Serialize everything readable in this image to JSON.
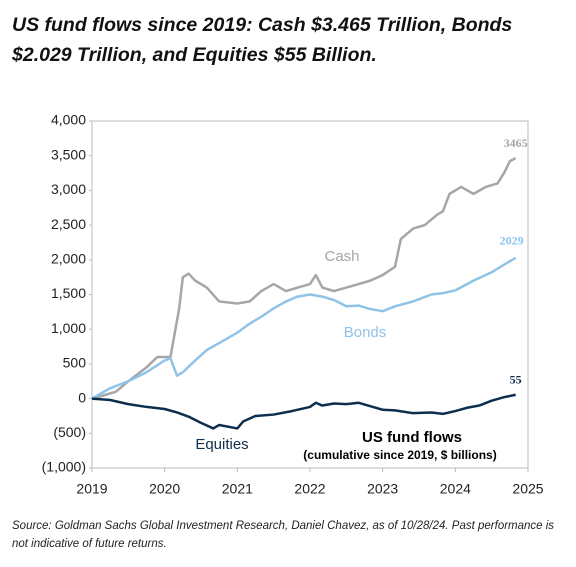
{
  "chart_data": {
    "type": "line",
    "title": "US fund flows since 2019: Cash $3.465 Trillion, Bonds $2.029 Trillion, and Equities $55 Billion.",
    "annotation": "US fund flows",
    "annotation_sub": "(cumulative since 2019, $ billions)",
    "source": "Source: Goldman Sachs Global Investment Research, Daniel Chavez,  as of 10/28/24. Past performance is not indicative of future returns.",
    "xlim": [
      2019,
      2025
    ],
    "xticks": [
      2019,
      2020,
      2021,
      2022,
      2023,
      2024,
      2025
    ],
    "ylim": [
      -1000,
      4000
    ],
    "yticks": [
      {
        "value": -1000,
        "label": "(1,000)"
      },
      {
        "value": -500,
        "label": "(500)"
      },
      0,
      500,
      {
        "value": 1000,
        "label": "1,000"
      },
      {
        "value": 1500,
        "label": "1,500"
      },
      {
        "value": 2000,
        "label": "2,000"
      },
      {
        "value": 2500,
        "label": "2,500"
      },
      {
        "value": 3000,
        "label": "3,000"
      },
      {
        "value": 3500,
        "label": "3,500"
      },
      {
        "value": 4000,
        "label": "4,000"
      }
    ],
    "series": [
      {
        "name": "Cash",
        "color": "#a6a6a6",
        "x": [
          2019.0,
          2019.17,
          2019.33,
          2019.5,
          2019.75,
          2019.9,
          2020.0,
          2020.08,
          2020.2,
          2020.25,
          2020.33,
          2020.42,
          2020.58,
          2020.75,
          2021.0,
          2021.17,
          2021.33,
          2021.5,
          2021.67,
          2021.83,
          2022.0,
          2022.08,
          2022.17,
          2022.33,
          2022.5,
          2022.67,
          2022.83,
          2023.0,
          2023.17,
          2023.25,
          2023.42,
          2023.58,
          2023.75,
          2023.83,
          2023.92,
          2024.08,
          2024.25,
          2024.42,
          2024.58,
          2024.67,
          2024.75,
          2024.83
        ],
        "values": [
          0,
          50,
          100,
          250,
          450,
          600,
          600,
          600,
          1300,
          1750,
          1800,
          1700,
          1600,
          1400,
          1370,
          1400,
          1550,
          1650,
          1550,
          1600,
          1650,
          1780,
          1600,
          1550,
          1600,
          1650,
          1700,
          1780,
          1900,
          2300,
          2450,
          2500,
          2650,
          2700,
          2950,
          3050,
          2950,
          3050,
          3100,
          3250,
          3420,
          3465
        ]
      },
      {
        "name": "Bonds",
        "color": "#8fc3e8",
        "x": [
          2019.0,
          2019.25,
          2019.5,
          2019.75,
          2020.0,
          2020.08,
          2020.17,
          2020.25,
          2020.42,
          2020.58,
          2020.75,
          2021.0,
          2021.17,
          2021.33,
          2021.5,
          2021.67,
          2021.83,
          2022.0,
          2022.17,
          2022.33,
          2022.5,
          2022.67,
          2022.83,
          2023.0,
          2023.17,
          2023.42,
          2023.67,
          2023.83,
          2024.0,
          2024.25,
          2024.5,
          2024.67,
          2024.83
        ],
        "values": [
          0,
          150,
          250,
          380,
          550,
          580,
          330,
          380,
          550,
          700,
          800,
          950,
          1080,
          1180,
          1300,
          1400,
          1470,
          1500,
          1470,
          1420,
          1330,
          1340,
          1290,
          1260,
          1330,
          1400,
          1500,
          1520,
          1560,
          1700,
          1820,
          1930,
          2029
        ]
      },
      {
        "name": "Equities",
        "color": "#0d2f4f",
        "x": [
          2019.0,
          2019.25,
          2019.5,
          2019.75,
          2020.0,
          2020.17,
          2020.33,
          2020.5,
          2020.67,
          2020.75,
          2021.0,
          2021.08,
          2021.25,
          2021.5,
          2021.75,
          2022.0,
          2022.08,
          2022.17,
          2022.33,
          2022.5,
          2022.67,
          2022.83,
          2023.0,
          2023.17,
          2023.42,
          2023.67,
          2023.83,
          2024.0,
          2024.17,
          2024.33,
          2024.5,
          2024.67,
          2024.83
        ],
        "values": [
          0,
          -20,
          -80,
          -120,
          -150,
          -200,
          -260,
          -350,
          -430,
          -380,
          -430,
          -330,
          -250,
          -230,
          -180,
          -120,
          -60,
          -100,
          -70,
          -80,
          -60,
          -110,
          -160,
          -170,
          -210,
          -200,
          -220,
          -180,
          -130,
          -100,
          -30,
          20,
          55
        ]
      }
    ]
  }
}
